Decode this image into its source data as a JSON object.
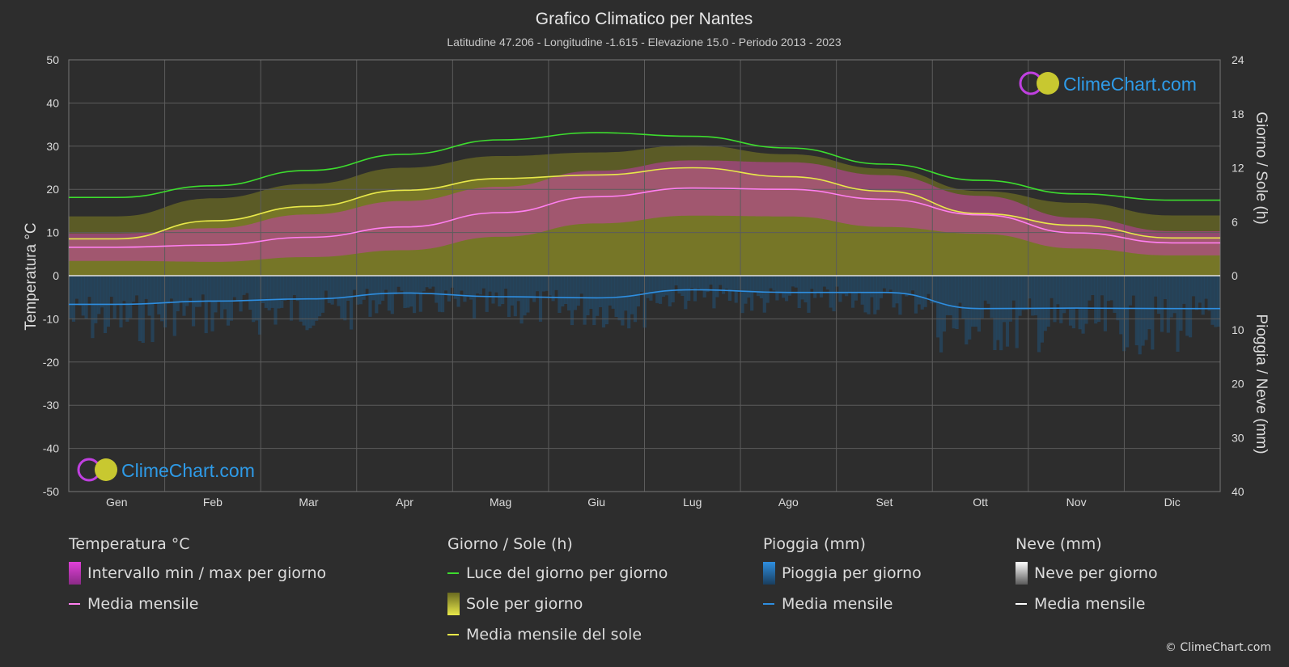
{
  "colors": {
    "background": "#2d2d2d",
    "grid": "#5c5c5c",
    "text": "#dcdcdc",
    "temp_range": "#d633c7",
    "temp_mean": "#ff7ff0",
    "daylight": "#3ddc2e",
    "sun_fill": "#8d8d28",
    "sun_mean": "#e8e84a",
    "rain_fill": "#1f5b8a",
    "rain_mean": "#2e8ee0",
    "snow_mean": "#ffffff",
    "brand": "#2e9be8"
  },
  "header": {
    "title": "Grafico Climatico per Nantes",
    "subtitle": "Latitudine 47.206 - Longitudine -1.615 - Elevazione 15.0 - Periodo 2013 - 2023"
  },
  "brand": {
    "name": "ClimeChart.com",
    "copyright": "© ClimeChart.com"
  },
  "chart_data": {
    "type": "line",
    "categories": [
      "Gen",
      "Feb",
      "Mar",
      "Apr",
      "Mag",
      "Giu",
      "Lug",
      "Ago",
      "Set",
      "Ott",
      "Nov",
      "Dic"
    ],
    "y_left": {
      "label": "Temperatura °C",
      "range": [
        -50,
        50
      ],
      "ticks": [
        50,
        40,
        30,
        20,
        10,
        0,
        -10,
        -20,
        -30,
        -40,
        -50
      ]
    },
    "y_right_top": {
      "label": "Giorno / Sole (h)",
      "range": [
        0,
        24
      ],
      "ticks": [
        24,
        18,
        12,
        6,
        0
      ]
    },
    "y_right_bottom": {
      "label": "Pioggia / Neve (mm)",
      "range": [
        0,
        40
      ],
      "ticks": [
        10,
        20,
        30,
        40
      ]
    },
    "grid": true,
    "series": [
      {
        "name": "Luce del giorno per giorno",
        "axis": "hours",
        "values": [
          8.7,
          10.0,
          11.7,
          13.5,
          15.1,
          15.9,
          15.5,
          14.2,
          12.4,
          10.6,
          9.1,
          8.4
        ]
      },
      {
        "name": "Media mensile del sole",
        "axis": "hours",
        "values": [
          4.1,
          6.1,
          7.7,
          9.5,
          10.8,
          11.2,
          12.0,
          11.0,
          9.4,
          6.9,
          5.6,
          4.2
        ]
      },
      {
        "name": "Media mensile",
        "group": "Temperatura °C",
        "axis": "temp",
        "values": [
          6.6,
          7.1,
          8.9,
          11.3,
          14.6,
          18.3,
          20.3,
          20.0,
          17.7,
          14.1,
          9.9,
          7.6
        ]
      },
      {
        "name": "Temp max media",
        "axis": "temp",
        "values": [
          9.8,
          11.0,
          14.2,
          17.3,
          20.6,
          24.3,
          26.7,
          26.3,
          23.3,
          18.5,
          13.4,
          10.3
        ]
      },
      {
        "name": "Temp min media",
        "axis": "temp",
        "values": [
          3.4,
          3.2,
          4.3,
          5.9,
          9.0,
          12.1,
          13.9,
          13.7,
          11.3,
          9.7,
          6.3,
          4.7
        ]
      },
      {
        "name": "Media mensile",
        "group": "Pioggia (mm)",
        "axis": "precip",
        "values": [
          5.3,
          4.7,
          4.3,
          3.2,
          3.9,
          4.1,
          2.6,
          3.1,
          3.1,
          6.1,
          6.0,
          6.1
        ]
      },
      {
        "name": "Media mensile",
        "group": "Neve (mm)",
        "axis": "precip",
        "values": [
          0,
          0,
          0,
          0,
          0,
          0,
          0,
          0,
          0,
          0,
          0,
          0
        ]
      }
    ]
  },
  "legend": {
    "temperature": {
      "title": "Temperatura °C",
      "items": [
        "Intervallo min / max per giorno",
        "Media mensile"
      ]
    },
    "sun": {
      "title": "Giorno / Sole (h)",
      "items": [
        "Luce del giorno per giorno",
        "Sole per giorno",
        "Media mensile del sole"
      ]
    },
    "rain": {
      "title": "Pioggia (mm)",
      "items": [
        "Pioggia per giorno",
        "Media mensile"
      ]
    },
    "snow": {
      "title": "Neve (mm)",
      "items": [
        "Neve per giorno",
        "Media mensile"
      ]
    }
  }
}
